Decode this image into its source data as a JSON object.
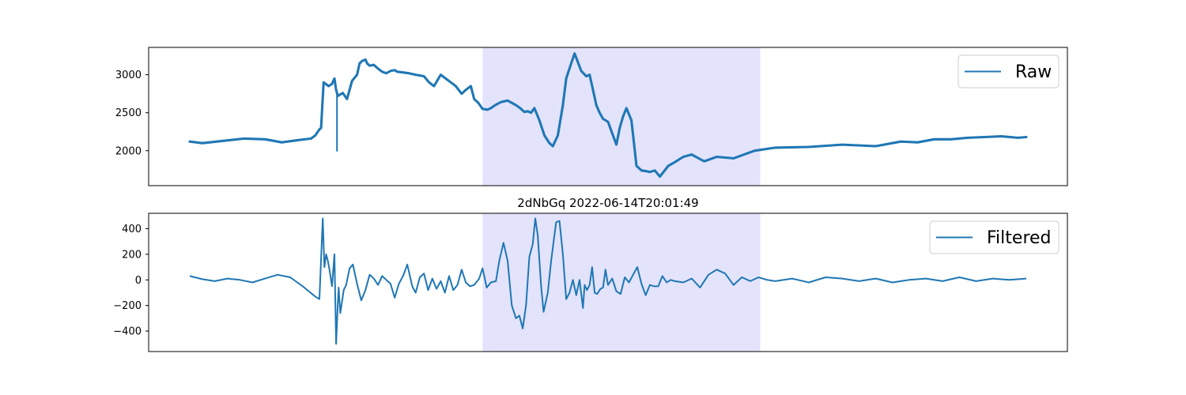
{
  "figure": {
    "background": "#ffffff",
    "highlight_color": "#e3e3fb",
    "line_color": "#1f77b4",
    "frame_color": "#000000",
    "legend_border_color": "#cccccc"
  },
  "chart_data": [
    {
      "type": "line",
      "title": "",
      "xlabel": "",
      "ylabel": "",
      "xlim": [
        0,
        1000
      ],
      "ylim": [
        1540,
        3360
      ],
      "x_ticks_visible": false,
      "y_ticks": [
        {
          "value": 2000,
          "label": "2000"
        },
        {
          "value": 2500,
          "label": "2500"
        },
        {
          "value": 3000,
          "label": "3000"
        }
      ],
      "legend": {
        "position": "upper right"
      },
      "highlight": {
        "x_start": 350,
        "x_end": 682
      },
      "series": [
        {
          "name": "Raw",
          "band": 32,
          "x": [
            0,
            15,
            40,
            65,
            90,
            110,
            130,
            145,
            150,
            155,
            157,
            160,
            166,
            170,
            173,
            175,
            177,
            180,
            183,
            188,
            194,
            200,
            203,
            206,
            210,
            212,
            215,
            220,
            225,
            230,
            235,
            240,
            245,
            248,
            255,
            262,
            270,
            280,
            286,
            292,
            300,
            306,
            312,
            318,
            325,
            330,
            336,
            340,
            345,
            350,
            356,
            360,
            365,
            372,
            380,
            390,
            395,
            400,
            404,
            408,
            412,
            418,
            424,
            430,
            434,
            440,
            446,
            450,
            456,
            460,
            468,
            474,
            478,
            482,
            486,
            490,
            494,
            500,
            506,
            510,
            514,
            518,
            522,
            528,
            534,
            540,
            546,
            550,
            556,
            562,
            572,
            580,
            590,
            600,
            615,
            630,
            650,
            675,
            700,
            740,
            780,
            820,
            850,
            870,
            890,
            910,
            930,
            950,
            970,
            990,
            1000
          ],
          "y": [
            2120,
            2100,
            2130,
            2160,
            2150,
            2110,
            2140,
            2160,
            2200,
            2280,
            2300,
            2900,
            2850,
            2880,
            2950,
            2800,
            2720,
            2740,
            2760,
            2680,
            2920,
            3000,
            3150,
            3180,
            3200,
            3150,
            3120,
            3130,
            3080,
            3040,
            3020,
            3050,
            3060,
            3040,
            3030,
            3020,
            3000,
            2980,
            2900,
            2850,
            3000,
            2950,
            2900,
            2850,
            2750,
            2800,
            2850,
            2680,
            2630,
            2550,
            2540,
            2560,
            2600,
            2640,
            2660,
            2600,
            2560,
            2510,
            2520,
            2500,
            2560,
            2400,
            2200,
            2100,
            2060,
            2200,
            2600,
            2950,
            3150,
            3280,
            3050,
            2980,
            3000,
            2800,
            2600,
            2500,
            2420,
            2380,
            2200,
            2080,
            2300,
            2450,
            2560,
            2400,
            1800,
            1740,
            1730,
            1720,
            1740,
            1660,
            1800,
            1850,
            1920,
            1950,
            1860,
            1920,
            1900,
            2000,
            2040,
            2050,
            2080,
            2060,
            2120,
            2110,
            2150,
            2150,
            2170,
            2180,
            2190,
            2170,
            2180
          ],
          "spikes": [
            {
              "x": 176,
              "y": 1990
            }
          ]
        }
      ]
    },
    {
      "type": "line",
      "title": "2dNbGq 2022-06-14T20:01:49",
      "xlabel": "",
      "ylabel": "",
      "xlim": [
        0,
        1000
      ],
      "ylim": [
        -560,
        520
      ],
      "x_ticks_visible": false,
      "y_ticks": [
        {
          "value": -400,
          "label": "−400"
        },
        {
          "value": -200,
          "label": "−200"
        },
        {
          "value": 0,
          "label": "0"
        },
        {
          "value": 200,
          "label": "200"
        },
        {
          "value": 400,
          "label": "400"
        }
      ],
      "legend": {
        "position": "upper right"
      },
      "highlight": {
        "x_start": 350,
        "x_end": 682
      },
      "series": [
        {
          "name": "Filtered",
          "band": 0,
          "x": [
            0,
            15,
            30,
            45,
            60,
            75,
            90,
            105,
            120,
            135,
            150,
            155,
            159,
            161,
            163,
            165,
            167,
            170,
            173,
            175,
            177,
            178,
            180,
            182,
            184,
            187,
            191,
            195,
            200,
            205,
            210,
            215,
            220,
            225,
            230,
            235,
            240,
            245,
            250,
            255,
            260,
            266,
            270,
            275,
            280,
            285,
            290,
            295,
            300,
            305,
            310,
            315,
            320,
            325,
            330,
            335,
            340,
            346,
            350,
            355,
            360,
            366,
            370,
            375,
            380,
            385,
            390,
            394,
            398,
            402,
            406,
            410,
            413,
            416,
            420,
            423,
            428,
            432,
            435,
            438,
            442,
            446,
            450,
            454,
            458,
            462,
            466,
            470,
            472,
            475,
            478,
            481,
            484,
            487,
            491,
            494,
            497,
            500,
            505,
            510,
            515,
            520,
            525,
            530,
            535,
            540,
            545,
            550,
            555,
            560,
            565,
            570,
            575,
            580,
            590,
            600,
            610,
            620,
            630,
            640,
            650,
            660,
            670,
            680,
            690,
            700,
            720,
            740,
            760,
            780,
            800,
            820,
            840,
            860,
            880,
            900,
            920,
            940,
            960,
            980,
            1000
          ],
          "y": [
            30,
            5,
            -10,
            10,
            0,
            -20,
            10,
            40,
            20,
            -50,
            -130,
            -150,
            480,
            100,
            200,
            150,
            80,
            -50,
            200,
            -500,
            -180,
            -60,
            -260,
            -170,
            -80,
            -40,
            90,
            120,
            -30,
            -160,
            -80,
            40,
            10,
            -40,
            30,
            0,
            -30,
            -140,
            -30,
            30,
            120,
            -50,
            -100,
            20,
            50,
            -80,
            10,
            -70,
            -10,
            -100,
            30,
            -80,
            -40,
            80,
            -20,
            -50,
            -40,
            10,
            90,
            -60,
            -20,
            -10,
            150,
            290,
            150,
            -200,
            -300,
            -280,
            -380,
            -200,
            180,
            280,
            480,
            350,
            -50,
            -250,
            -100,
            150,
            300,
            450,
            460,
            200,
            -150,
            -100,
            0,
            -120,
            0,
            -220,
            -40,
            -80,
            -40,
            100,
            -100,
            -110,
            -70,
            -60,
            80,
            -40,
            10,
            -90,
            -110,
            20,
            -20,
            40,
            100,
            -30,
            -120,
            -40,
            -50,
            -50,
            30,
            -20,
            0,
            -10,
            -20,
            10,
            -60,
            40,
            80,
            50,
            -40,
            20,
            -10,
            20,
            0,
            -10,
            10,
            -20,
            20,
            10,
            -10,
            10,
            -20,
            0,
            10,
            -10,
            20,
            -10,
            10,
            0,
            10
          ]
        }
      ]
    }
  ]
}
